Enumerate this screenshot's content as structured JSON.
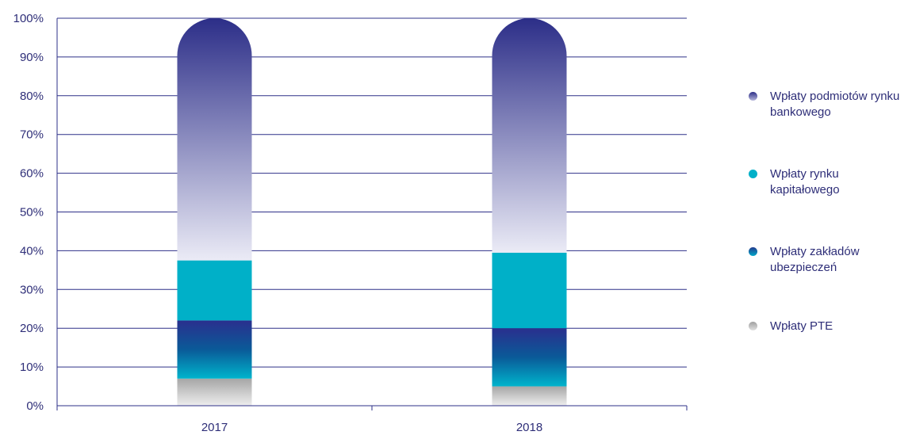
{
  "chart_data": {
    "type": "bar",
    "stacked": true,
    "percent_stacked": true,
    "categories": [
      "2017",
      "2018"
    ],
    "series": [
      {
        "name": "Wpłaty PTE",
        "values": [
          7,
          5
        ],
        "color": "#b3b3b3"
      },
      {
        "name": "Wpłaty zakładów ubezpieczeń",
        "values": [
          15,
          15
        ],
        "color": "#1f3e94"
      },
      {
        "name": "Wpłaty rynku kapitałowego",
        "values": [
          15.5,
          19.5
        ],
        "color": "#00b0c8"
      },
      {
        "name": "Wpłaty podmiotów rynku bankowego",
        "values": [
          62.5,
          60.5
        ],
        "color": "#2e3088"
      }
    ],
    "yticks": [
      "0%",
      "10%",
      "20%",
      "30%",
      "40%",
      "50%",
      "60%",
      "70%",
      "80%",
      "90%",
      "100%"
    ],
    "ylim": [
      0,
      100
    ],
    "grid": true,
    "legend_position": "right",
    "title": "",
    "xlabel": "",
    "ylabel": ""
  },
  "legend": {
    "items": [
      {
        "label": "Wpłaty podmiotów rynku bankowego",
        "color": "#3d3d8f"
      },
      {
        "label": "Wpłaty rynku kapitałowego",
        "color": "#00b0c8"
      },
      {
        "label": "Wpłaty zakładów ubezpieczeń",
        "color": "#0a3f8c"
      },
      {
        "label": "Wpłaty PTE",
        "color": "#c4c4c4"
      }
    ]
  }
}
